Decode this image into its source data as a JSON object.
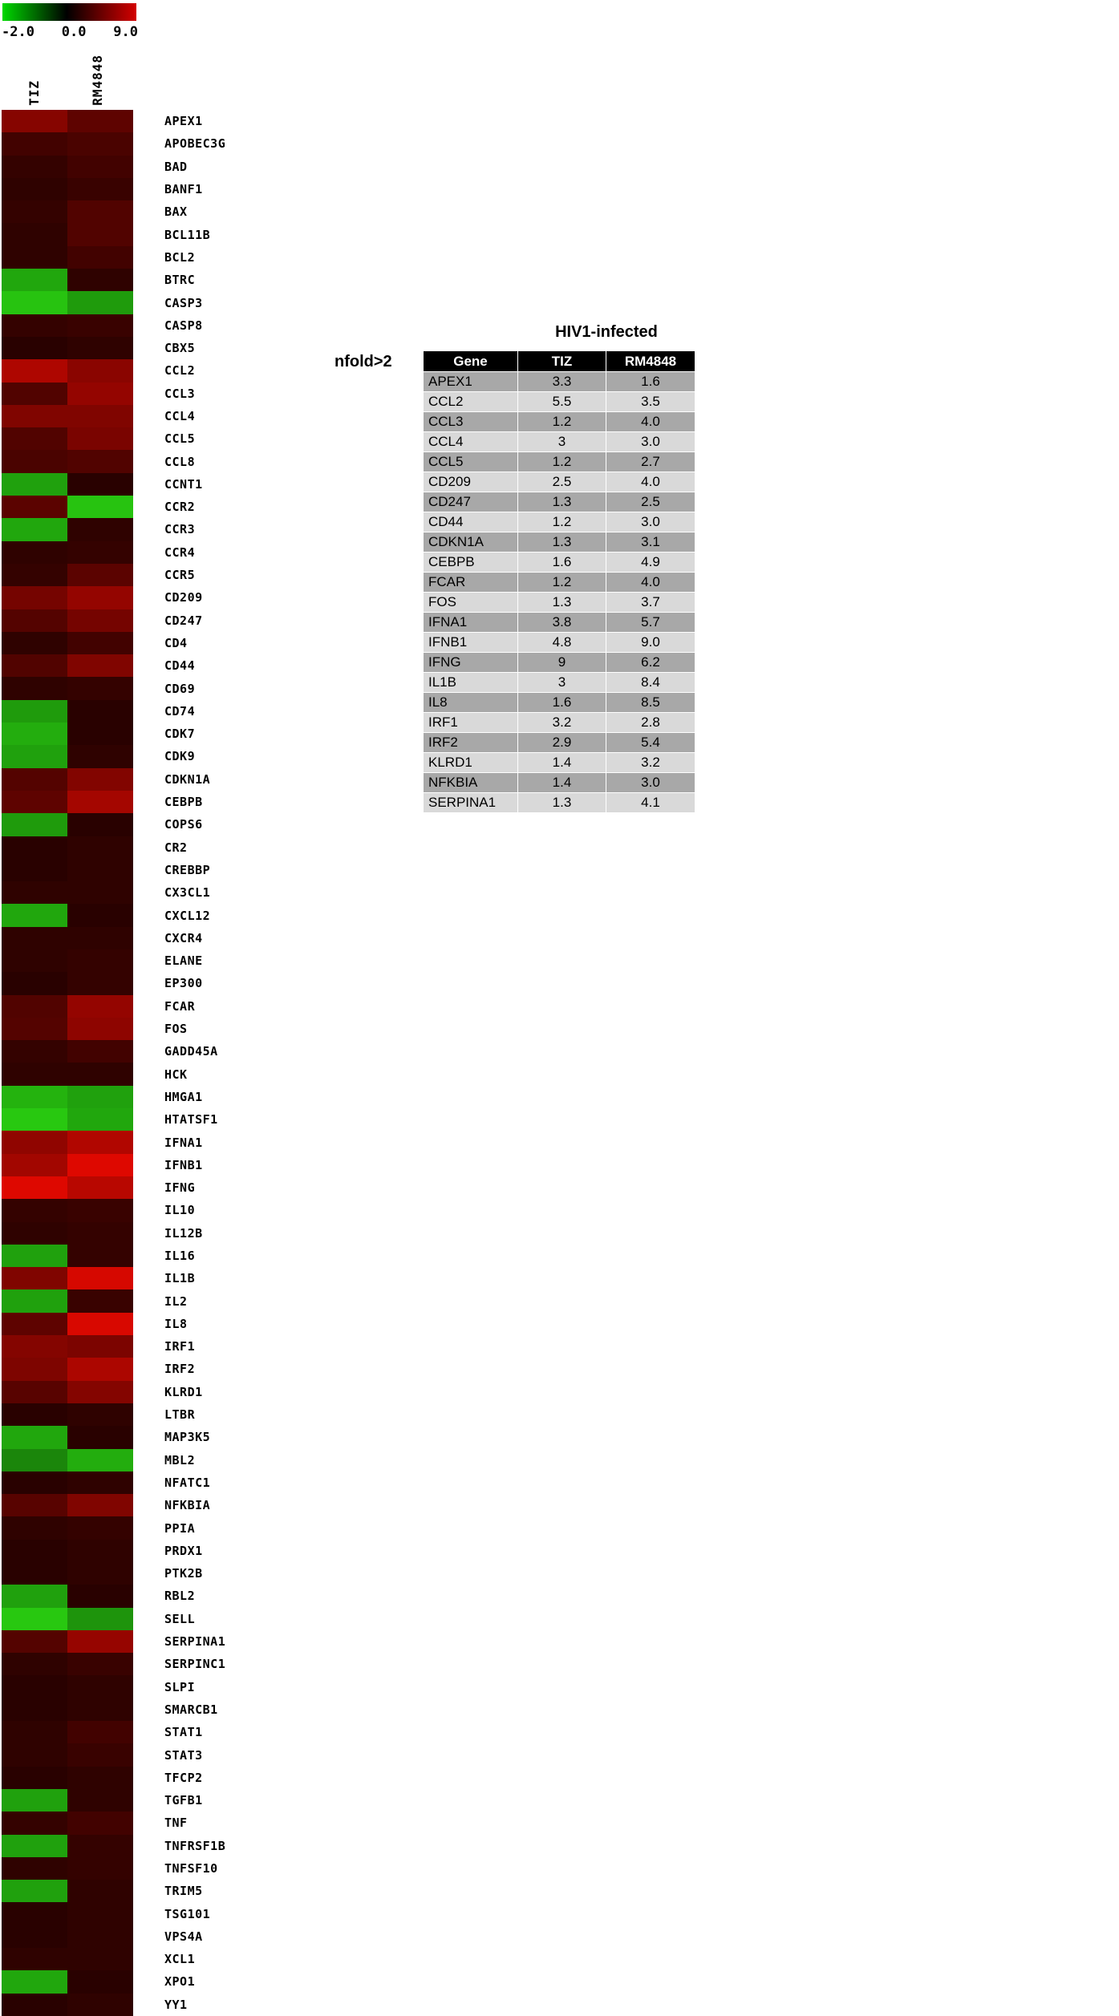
{
  "scale": {
    "labels": [
      "-2.0",
      "0.0",
      "9.0"
    ],
    "min_color": "#00d800",
    "mid_color": "#000000",
    "max_color": "#d40000"
  },
  "chart_data": [
    {
      "type": "heatmap",
      "title": "",
      "columns": [
        "TIZ",
        "RM4848"
      ],
      "colorscale": {
        "min": -2.0,
        "mid": 0.0,
        "max": 9.0,
        "min_label": "-2.0",
        "mid_label": "0.0",
        "max_label": "9.0",
        "min_color": "green",
        "mid_color": "black",
        "max_color": "red"
      },
      "rows": [
        "APEX1",
        "APOBEC3G",
        "BAD",
        "BANF1",
        "BAX",
        "BCL11B",
        "BCL2",
        "BTRC",
        "CASP3",
        "CASP8",
        "CBX5",
        "CCL2",
        "CCL3",
        "CCL4",
        "CCL5",
        "CCL8",
        "CCNT1",
        "CCR2",
        "CCR3",
        "CCR4",
        "CCR5",
        "CD209",
        "CD247",
        "CD4",
        "CD44",
        "CD69",
        "CD74",
        "CDK7",
        "CDK9",
        "CDKN1A",
        "CEBPB",
        "COPS6",
        "CR2",
        "CREBBP",
        "CX3CL1",
        "CXCL12",
        "CXCR4",
        "ELANE",
        "EP300",
        "FCAR",
        "FOS",
        "GADD45A",
        "HCK",
        "HMGA1",
        "HTATSF1",
        "IFNA1",
        "IFNB1",
        "IFNG",
        "IL10",
        "IL12B",
        "IL16",
        "IL1B",
        "IL2",
        "IL8",
        "IRF1",
        "IRF2",
        "KLRD1",
        "LTBR",
        "MAP3K5",
        "MBL2",
        "NFATC1",
        "NFKBIA",
        "PPIA",
        "PRDX1",
        "PTK2B",
        "RBL2",
        "SELL",
        "SERPINA1",
        "SERPINC1",
        "SLPI",
        "SMARCB1",
        "STAT1",
        "STAT3",
        "TFCP2",
        "TGFB1",
        "TNF",
        "TNFRSF1B",
        "TNFSF10",
        "TRIM5",
        "TSG101",
        "VPS4A",
        "XCL1",
        "XPO1",
        "YY1"
      ],
      "values": [
        [
          3.3,
          1.6
        ],
        [
          0.8,
          1.0
        ],
        [
          0.5,
          0.8
        ],
        [
          0.4,
          0.6
        ],
        [
          0.5,
          1.2
        ],
        [
          0.4,
          1.2
        ],
        [
          0.4,
          0.8
        ],
        [
          -1.4,
          0.4
        ],
        [
          -1.9,
          -1.2
        ],
        [
          0.5,
          0.6
        ],
        [
          0.3,
          0.4
        ],
        [
          5.5,
          3.5
        ],
        [
          1.2,
          4.0
        ],
        [
          3.0,
          3.0
        ],
        [
          1.2,
          2.7
        ],
        [
          1.0,
          1.2
        ],
        [
          -1.3,
          0.3
        ],
        [
          1.5,
          -1.9
        ],
        [
          -1.4,
          0.4
        ],
        [
          0.4,
          0.5
        ],
        [
          0.5,
          1.5
        ],
        [
          2.5,
          4.0
        ],
        [
          1.3,
          2.5
        ],
        [
          0.4,
          0.8
        ],
        [
          1.2,
          3.0
        ],
        [
          0.4,
          0.5
        ],
        [
          -1.2,
          0.3
        ],
        [
          -1.5,
          0.3
        ],
        [
          -1.3,
          0.4
        ],
        [
          1.3,
          3.1
        ],
        [
          1.6,
          4.9
        ],
        [
          -1.2,
          0.3
        ],
        [
          0.3,
          0.4
        ],
        [
          0.3,
          0.4
        ],
        [
          0.4,
          0.4
        ],
        [
          -1.4,
          0.3
        ],
        [
          0.4,
          0.4
        ],
        [
          0.4,
          0.5
        ],
        [
          0.3,
          0.5
        ],
        [
          1.2,
          4.0
        ],
        [
          1.3,
          3.7
        ],
        [
          0.5,
          0.8
        ],
        [
          0.4,
          0.4
        ],
        [
          -1.6,
          -1.3
        ],
        [
          -2.0,
          -1.4
        ],
        [
          3.8,
          5.7
        ],
        [
          4.8,
          9.0
        ],
        [
          9.0,
          6.2
        ],
        [
          0.5,
          0.6
        ],
        [
          0.4,
          0.5
        ],
        [
          -1.3,
          0.5
        ],
        [
          3.0,
          8.4
        ],
        [
          -1.3,
          0.6
        ],
        [
          1.6,
          8.5
        ],
        [
          3.2,
          2.8
        ],
        [
          2.9,
          5.4
        ],
        [
          1.4,
          3.2
        ],
        [
          0.3,
          0.4
        ],
        [
          -1.4,
          0.3
        ],
        [
          -0.9,
          -1.5
        ],
        [
          0.3,
          0.4
        ],
        [
          1.4,
          3.0
        ],
        [
          0.4,
          0.5
        ],
        [
          0.3,
          0.4
        ],
        [
          0.3,
          0.4
        ],
        [
          -1.3,
          0.3
        ],
        [
          -2.0,
          -1.1
        ],
        [
          1.3,
          4.1
        ],
        [
          0.4,
          0.6
        ],
        [
          0.3,
          0.4
        ],
        [
          0.3,
          0.4
        ],
        [
          0.4,
          0.8
        ],
        [
          0.4,
          0.6
        ],
        [
          0.3,
          0.4
        ],
        [
          -1.3,
          0.4
        ],
        [
          0.5,
          0.8
        ],
        [
          -1.3,
          0.5
        ],
        [
          0.4,
          0.5
        ],
        [
          -1.3,
          0.4
        ],
        [
          0.3,
          0.4
        ],
        [
          0.3,
          0.4
        ],
        [
          0.4,
          0.4
        ],
        [
          -1.4,
          0.3
        ],
        [
          0.3,
          0.4
        ]
      ]
    },
    {
      "type": "table",
      "title": "HIV1-infected",
      "label": "nfold>2",
      "columns": [
        "Gene",
        "TIZ",
        "RM4848"
      ],
      "rows": [
        [
          "APEX1",
          "3.3",
          "1.6"
        ],
        [
          "CCL2",
          "5.5",
          "3.5"
        ],
        [
          "CCL3",
          "1.2",
          "4.0"
        ],
        [
          "CCL4",
          "3",
          "3.0"
        ],
        [
          "CCL5",
          "1.2",
          "2.7"
        ],
        [
          "CD209",
          "2.5",
          "4.0"
        ],
        [
          "CD247",
          "1.3",
          "2.5"
        ],
        [
          "CD44",
          "1.2",
          "3.0"
        ],
        [
          "CDKN1A",
          "1.3",
          "3.1"
        ],
        [
          "CEBPB",
          "1.6",
          "4.9"
        ],
        [
          "FCAR",
          "1.2",
          "4.0"
        ],
        [
          "FOS",
          "1.3",
          "3.7"
        ],
        [
          "IFNA1",
          "3.8",
          "5.7"
        ],
        [
          "IFNB1",
          "4.8",
          "9.0"
        ],
        [
          "IFNG",
          "9",
          "6.2"
        ],
        [
          "IL1B",
          "3",
          "8.4"
        ],
        [
          "IL8",
          "1.6",
          "8.5"
        ],
        [
          "IRF1",
          "3.2",
          "2.8"
        ],
        [
          "IRF2",
          "2.9",
          "5.4"
        ],
        [
          "KLRD1",
          "1.4",
          "3.2"
        ],
        [
          "NFKBIA",
          "1.4",
          "3.0"
        ],
        [
          "SERPINA1",
          "1.3",
          "4.1"
        ]
      ]
    }
  ]
}
